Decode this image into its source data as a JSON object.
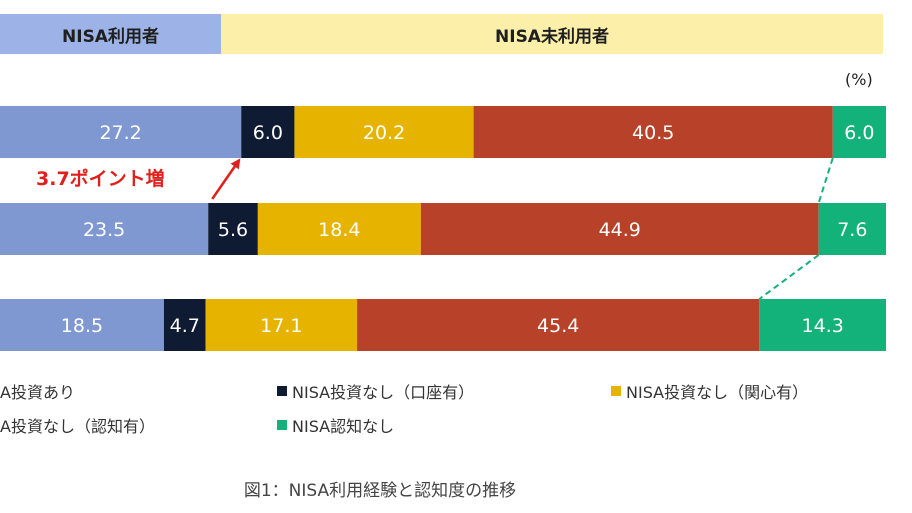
{
  "header": {
    "left": "NISA利用者",
    "right": "NISA未利用者"
  },
  "unit_label": "(%)",
  "annotation": "3.7ポイント増",
  "caption": "図1：NISA利用経験と認知度の推移",
  "colors": {
    "nisa_invest": "#7f98d2",
    "no_invest_account": "#0f1a33",
    "no_invest_interest": "#e6b400",
    "no_invest_no_interest": "#b8412a",
    "not_aware": "#12b27a",
    "arrow": "#e0201c",
    "dash": "#12b27a"
  },
  "legend": [
    {
      "key": "nisa_invest",
      "label": "A投資あり",
      "swatch": false
    },
    {
      "key": "no_invest_account",
      "label": "NISA投資なし（口座有）",
      "swatch": true
    },
    {
      "key": "no_invest_interest",
      "label": "NISA投資なし（関心有）",
      "swatch": true
    },
    {
      "key": "no_invest_no_interest",
      "label": "A投資なし（認知有）",
      "swatch": false
    },
    {
      "key": "not_aware",
      "label": "NISA認知なし",
      "swatch": true
    }
  ],
  "chart_data": {
    "type": "bar",
    "orientation": "horizontal",
    "stacked": true,
    "percent": true,
    "categories": [
      "",
      "",
      ""
    ],
    "series": [
      {
        "key": "nisa_invest",
        "values": [
          27.2,
          23.5,
          18.5
        ]
      },
      {
        "key": "no_invest_account",
        "values": [
          6.0,
          5.6,
          4.7
        ]
      },
      {
        "key": "no_invest_interest",
        "values": [
          20.2,
          18.4,
          17.1
        ]
      },
      {
        "key": "no_invest_no_interest",
        "values": [
          40.5,
          44.9,
          45.4
        ]
      },
      {
        "key": "not_aware",
        "values": [
          6.0,
          7.6,
          14.3
        ]
      }
    ],
    "value_labels": [
      [
        "27.2",
        "6.0",
        "20.2",
        "40.5",
        "6.0"
      ],
      [
        "23.5",
        "5.6",
        "18.4",
        "44.9",
        "7.6"
      ],
      [
        "18.5",
        "4.7",
        "17.1",
        "45.4",
        "14.3"
      ]
    ],
    "legend_placement": "bottom",
    "grid": false
  }
}
